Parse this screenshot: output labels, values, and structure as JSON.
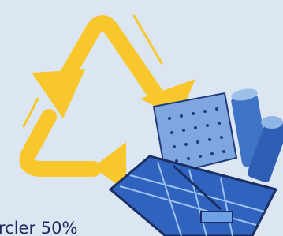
{
  "caption": "rcler 50%"
}
